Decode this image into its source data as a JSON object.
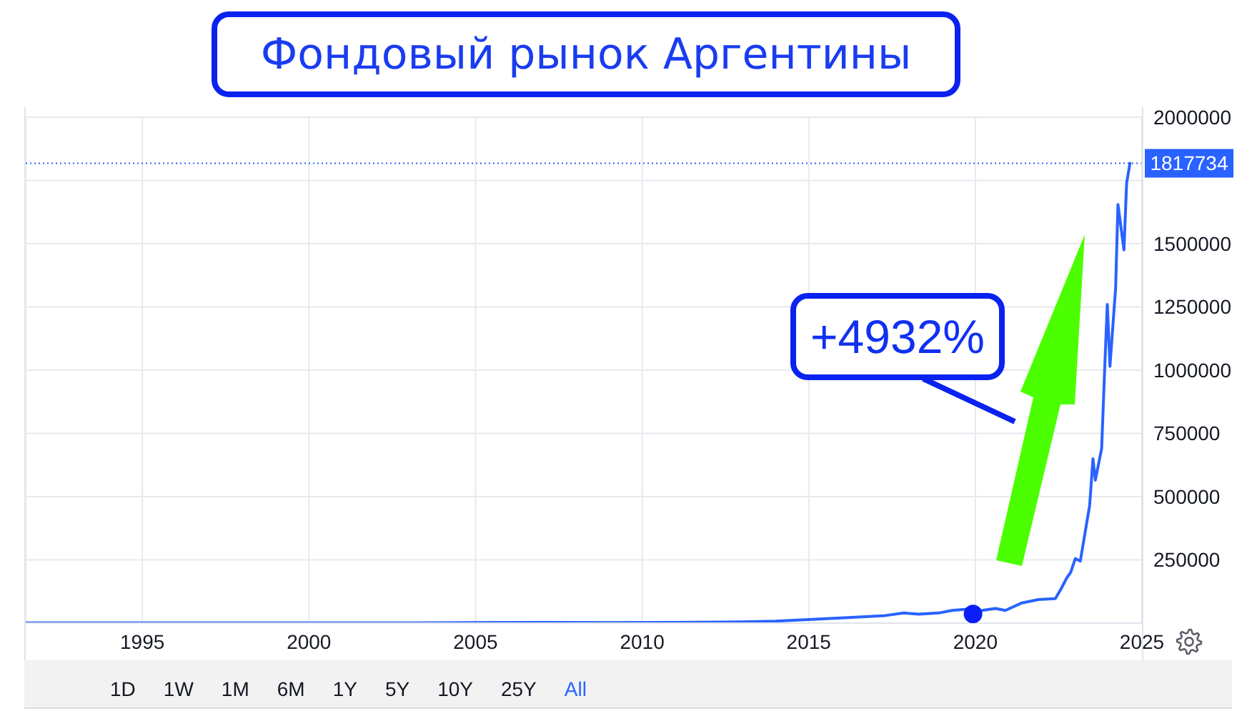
{
  "chart_data": {
    "type": "line",
    "title": "Фондовый рынок Аргентины",
    "annotations": [
      "+4932%",
      "1D",
      "1W",
      "1M",
      "6M",
      "1Y",
      "5Y",
      "10Y",
      "25Y",
      "All"
    ],
    "series": [
      {
        "color": "#2962ff",
        "x": [
          1991.5,
          1993,
          1995,
          1997,
          1999,
          2001,
          2003,
          2005,
          2007,
          2009,
          2011,
          2013,
          2014,
          2015,
          2016.4,
          2017.3,
          2017.86,
          2018.3,
          2018.9,
          2019.3,
          2019.75,
          2019.93,
          2020.2,
          2020.6,
          2020.9,
          2021.4,
          2021.9,
          2022.4,
          2022.57,
          2022.75,
          2022.86,
          2023.0,
          2023.15,
          2023.43,
          2023.53,
          2023.6,
          2023.79,
          2023.88,
          2023.96,
          2024.04,
          2024.21,
          2024.28,
          2024.46,
          2024.54,
          2024.64
        ],
        "values": [
          1000,
          1000,
          1000,
          1000,
          1000,
          1000,
          1000,
          2000,
          3000,
          2000,
          3000,
          5000,
          8000,
          14000,
          23000,
          30000,
          40000,
          35000,
          40000,
          50000,
          55000,
          36000,
          50000,
          58000,
          50000,
          80000,
          93000,
          97000,
          135000,
          180000,
          200000,
          255000,
          245000,
          465000,
          650000,
          565000,
          690000,
          1000000,
          1260000,
          1015000,
          1325000,
          1655000,
          1475000,
          1740000,
          1817734
        ]
      },
      {
        "type": "scatter",
        "color": "#0a1ef5",
        "marker": "circle",
        "x": [
          2019.93
        ],
        "values": [
          36000
        ]
      }
    ],
    "xlim": [
      1991.5,
      2025
    ],
    "xticks": [
      1995,
      2000,
      2005,
      2010,
      2015,
      2020,
      2025
    ],
    "ylim": [
      0,
      2000000
    ],
    "yticks": [
      250000,
      500000,
      750000,
      1000000,
      1250000,
      1500000,
      {
        "value": 1750000,
        "label": null
      },
      2000000
    ],
    "ref_lines": [
      {
        "axis": "y",
        "value": 1817734,
        "label": "1817734",
        "color": "#2962ff",
        "line_style": "dotted"
      }
    ],
    "grid": true
  }
}
